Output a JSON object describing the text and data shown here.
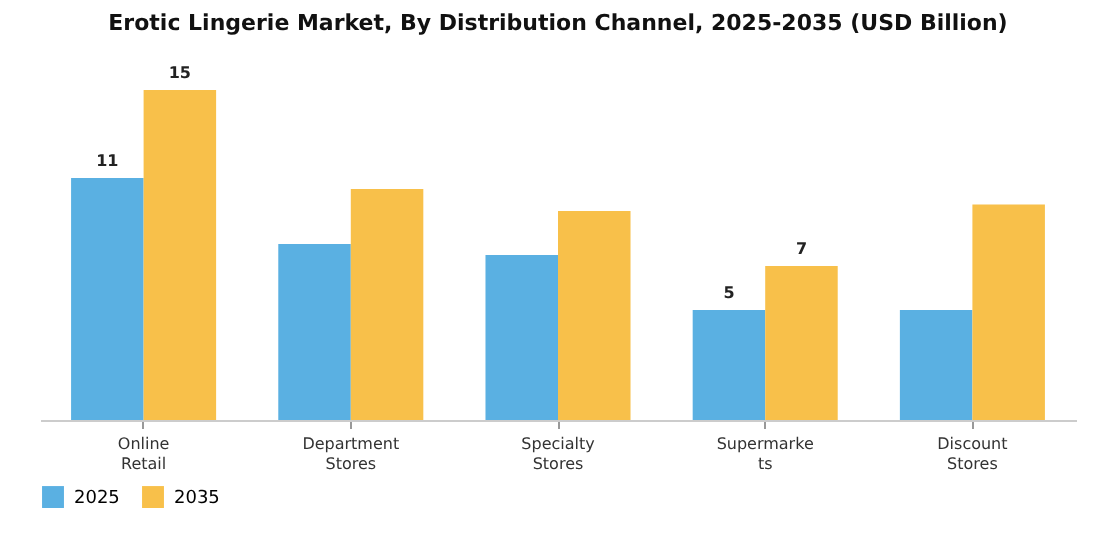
{
  "chart_data": {
    "type": "bar",
    "title": "Erotic Lingerie Market, By Distribution Channel, 2025-2035 (USD Billion)",
    "categories": [
      "Online\nRetail",
      "Department\nStores",
      "Specialty\nStores",
      "Supermarke\nts",
      "Discount\nStores"
    ],
    "series": [
      {
        "name": "2025",
        "color": "#5ab0e2",
        "values": [
          11,
          8.0,
          7.5,
          5,
          5.0
        ],
        "value_labels": [
          "11",
          null,
          null,
          "5",
          null
        ]
      },
      {
        "name": "2035",
        "color": "#f8c04a",
        "values": [
          15,
          10.5,
          9.5,
          7,
          9.8
        ],
        "value_labels": [
          "15",
          null,
          null,
          "7",
          null
        ]
      }
    ],
    "legend": "bottom",
    "grid": false
  }
}
